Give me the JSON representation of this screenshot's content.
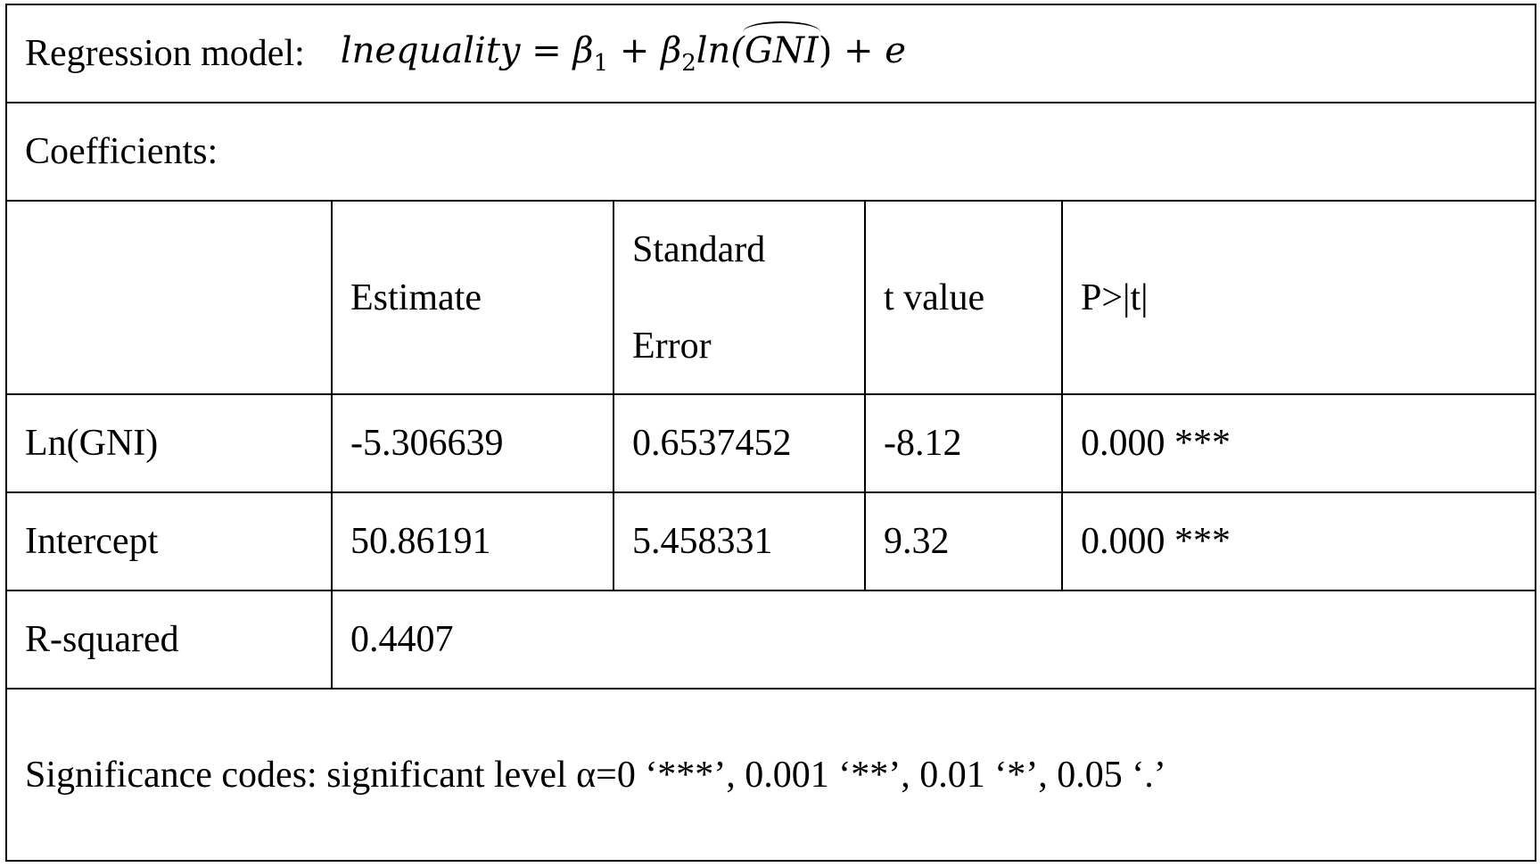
{
  "model": {
    "label": "Regression model:",
    "lhs": "lnequality",
    "eq": "=",
    "beta1": "β",
    "beta1_sub": "1",
    "plus1": "+",
    "beta2": "β",
    "beta2_sub": "2",
    "ln": "ln(",
    "gni_hat": "GNI",
    "close": ")",
    "plus2": "+",
    "error": "e"
  },
  "coefficients_label": "Coefficients:",
  "header": {
    "blank": "",
    "estimate": "Estimate",
    "std_error_line1": "Standard",
    "std_error_line2": "Error",
    "t_value": "t value",
    "p_value": "P>|t|"
  },
  "rows": [
    {
      "name": "Ln(GNI)",
      "estimate": "-5.306639",
      "std_error": "0.6537452",
      "t_value": "-8.12",
      "p_value": "0.000 ***"
    },
    {
      "name": "Intercept",
      "estimate": "50.86191",
      "std_error": "5.458331",
      "t_value": "9.32",
      "p_value": "0.000 ***"
    }
  ],
  "r_squared": {
    "label": "R-squared",
    "value": "0.4407"
  },
  "significance": "Significance codes: significant level α=0 ‘***’, 0.001 ‘**’, 0.01 ‘*’, 0.05 ‘.’"
}
